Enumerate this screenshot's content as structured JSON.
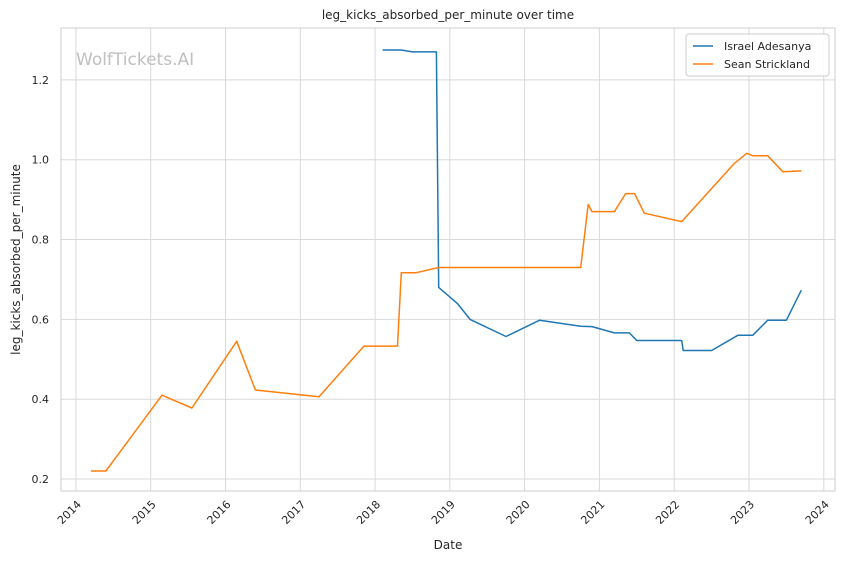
{
  "chart_data": {
    "type": "line",
    "title": "leg_kicks_absorbed_per_minute over time",
    "xlabel": "Date",
    "ylabel": "leg_kicks_absorbed_per_minute",
    "watermark": "WolfTickets.AI",
    "xlim": [
      2013.8,
      2024.15
    ],
    "ylim": [
      0.17,
      1.33
    ],
    "x_ticks": [
      2014,
      2015,
      2016,
      2017,
      2018,
      2019,
      2020,
      2021,
      2022,
      2023,
      2024
    ],
    "x_tick_labels": [
      "2014",
      "2015",
      "2016",
      "2017",
      "2018",
      "2019",
      "2020",
      "2021",
      "2022",
      "2023",
      "2024"
    ],
    "y_ticks": [
      0.2,
      0.4,
      0.6,
      0.8,
      1.0,
      1.2
    ],
    "y_tick_labels": [
      "0.2",
      "0.4",
      "0.6",
      "0.8",
      "1.0",
      "1.2"
    ],
    "grid": true,
    "legend_position": "top-right",
    "series": [
      {
        "name": "Israel Adesanya",
        "color": "#1f77b4",
        "points": [
          [
            2018.1,
            1.275
          ],
          [
            2018.35,
            1.275
          ],
          [
            2018.5,
            1.27
          ],
          [
            2018.82,
            1.27
          ],
          [
            2018.85,
            0.68
          ],
          [
            2019.1,
            0.64
          ],
          [
            2019.27,
            0.6
          ],
          [
            2019.75,
            0.557
          ],
          [
            2020.2,
            0.598
          ],
          [
            2020.75,
            0.583
          ],
          [
            2020.9,
            0.582
          ],
          [
            2021.2,
            0.566
          ],
          [
            2021.4,
            0.566
          ],
          [
            2021.5,
            0.547
          ],
          [
            2022.1,
            0.547
          ],
          [
            2022.12,
            0.522
          ],
          [
            2022.5,
            0.522
          ],
          [
            2022.85,
            0.56
          ],
          [
            2023.05,
            0.56
          ],
          [
            2023.25,
            0.598
          ],
          [
            2023.5,
            0.598
          ],
          [
            2023.7,
            0.673
          ]
        ]
      },
      {
        "name": "Sean Strickland",
        "color": "#ff7f0e",
        "points": [
          [
            2014.2,
            0.22
          ],
          [
            2014.4,
            0.22
          ],
          [
            2015.15,
            0.41
          ],
          [
            2015.55,
            0.378
          ],
          [
            2016.15,
            0.545
          ],
          [
            2016.4,
            0.423
          ],
          [
            2017.25,
            0.406
          ],
          [
            2017.85,
            0.533
          ],
          [
            2018.3,
            0.533
          ],
          [
            2018.35,
            0.717
          ],
          [
            2018.55,
            0.717
          ],
          [
            2018.85,
            0.73
          ],
          [
            2020.75,
            0.73
          ],
          [
            2020.85,
            0.888
          ],
          [
            2020.9,
            0.87
          ],
          [
            2021.2,
            0.87
          ],
          [
            2021.35,
            0.915
          ],
          [
            2021.47,
            0.915
          ],
          [
            2021.6,
            0.866
          ],
          [
            2022.1,
            0.845
          ],
          [
            2022.8,
            0.99
          ],
          [
            2022.97,
            1.016
          ],
          [
            2023.05,
            1.01
          ],
          [
            2023.25,
            1.01
          ],
          [
            2023.45,
            0.97
          ],
          [
            2023.7,
            0.972
          ]
        ]
      }
    ]
  }
}
